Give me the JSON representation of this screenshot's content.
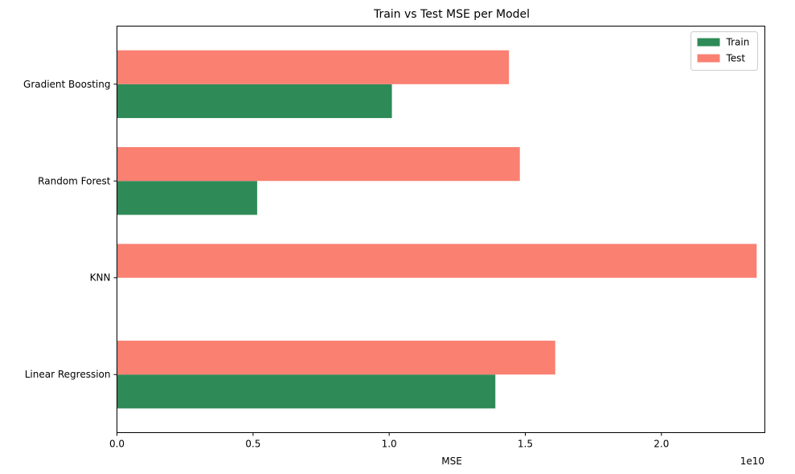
{
  "chart_data": {
    "type": "bar",
    "orientation": "horizontal",
    "title": "Train vs Test MSE per Model",
    "xlabel": "MSE",
    "ylabel": "",
    "x_scale_label": "1e10",
    "categories": [
      "Linear Regression",
      "KNN",
      "Random Forest",
      "Gradient Boosting"
    ],
    "series": [
      {
        "name": "Train",
        "color": "#2e8b57",
        "values": [
          1.39,
          0.0,
          0.515,
          1.01
        ]
      },
      {
        "name": "Test",
        "color": "#fa8072",
        "values": [
          1.61,
          2.35,
          1.48,
          1.44
        ]
      }
    ],
    "xlim": [
      0,
      2.38
    ],
    "x_ticks": [
      0.0,
      0.5,
      1.0,
      1.5,
      2.0
    ],
    "x_tick_labels": [
      "0.0",
      "0.5",
      "1.0",
      "1.5",
      "2.0"
    ],
    "grid": false,
    "legend_position": "top-right"
  }
}
